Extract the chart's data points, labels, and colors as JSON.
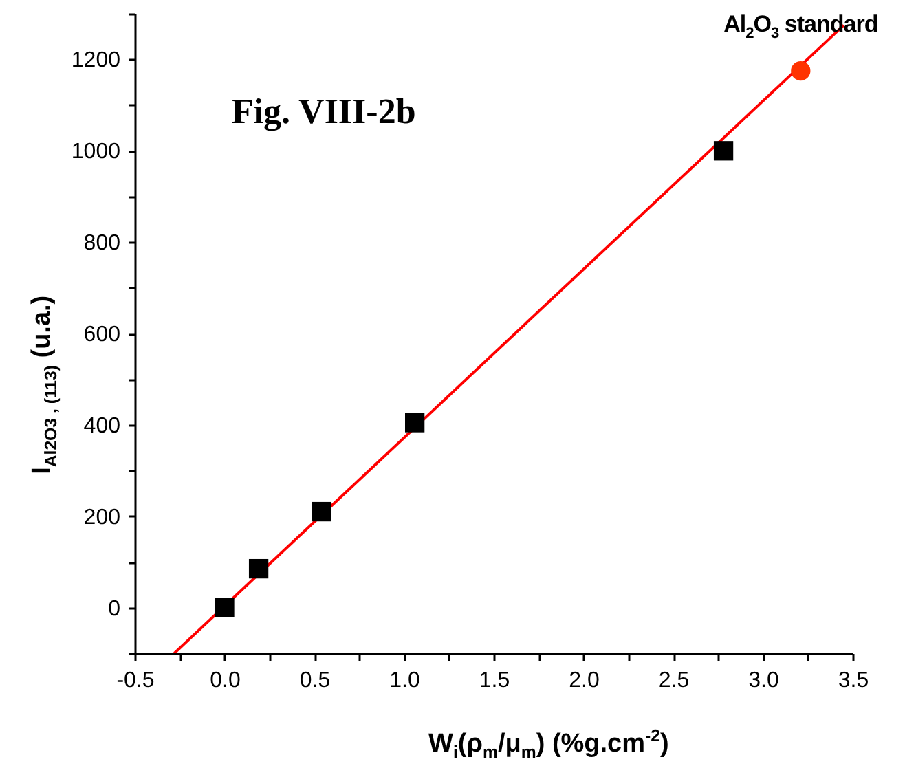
{
  "chart_data": {
    "type": "scatter",
    "title": "Fig. VIII-2b",
    "xlabel": "W$_{i}$(ρ$_{m}$/μ$_{m}$)  (%g.cm$^{-2}$)",
    "ylabel": "I$_{Al2O3 , (113)}$  (u.a.)",
    "xlim": [
      -0.5,
      3.5
    ],
    "ylim": [
      -100,
      1300
    ],
    "xticks": [
      {
        "value": -0.5,
        "label": "-0.5"
      },
      {
        "value": -0.25,
        "label": null
      },
      {
        "value": 0,
        "label": "0.0"
      },
      {
        "value": 0.25,
        "label": null
      },
      {
        "value": 0.5,
        "label": "0.5"
      },
      {
        "value": 0.75,
        "label": null
      },
      {
        "value": 1,
        "label": "1.0"
      },
      {
        "value": 1.25,
        "label": null
      },
      {
        "value": 1.5,
        "label": "1.5"
      },
      {
        "value": 1.75,
        "label": null
      },
      {
        "value": 2,
        "label": "2.0"
      },
      {
        "value": 2.25,
        "label": null
      },
      {
        "value": 2.5,
        "label": "2.5"
      },
      {
        "value": 2.75,
        "label": null
      },
      {
        "value": 3,
        "label": "3.0"
      },
      {
        "value": 3.25,
        "label": null
      },
      {
        "value": 3.5,
        "label": "3.5"
      }
    ],
    "yticks": [
      {
        "value": -100,
        "label": null
      },
      0,
      {
        "value": 100,
        "label": null
      },
      200,
      {
        "value": 300,
        "label": null
      },
      400,
      {
        "value": 500,
        "label": null
      },
      600,
      {
        "value": 700,
        "label": null
      },
      800,
      {
        "value": 900,
        "label": null
      },
      1000,
      {
        "value": 1100,
        "label": null
      },
      1200,
      {
        "value": 1300,
        "label": null
      }
    ],
    "grid": false,
    "series": [
      {
        "type": "line",
        "color": "#ff0000",
        "x": [
          -0.28,
          3.45
        ],
        "values": [
          -100,
          1275
        ]
      },
      {
        "type": "scatter",
        "marker": "square",
        "color": "#000000",
        "x": [
          0,
          0.19,
          0.54,
          1.06,
          2.78
        ],
        "values": [
          0,
          85,
          210,
          405,
          1000
        ]
      },
      {
        "type": "scatter",
        "marker": "circle",
        "name": "Al$_{2}$O$_{3}$ standard",
        "color": "#ff3300",
        "x": [
          3.21
        ],
        "values": [
          1175
        ]
      }
    ]
  }
}
